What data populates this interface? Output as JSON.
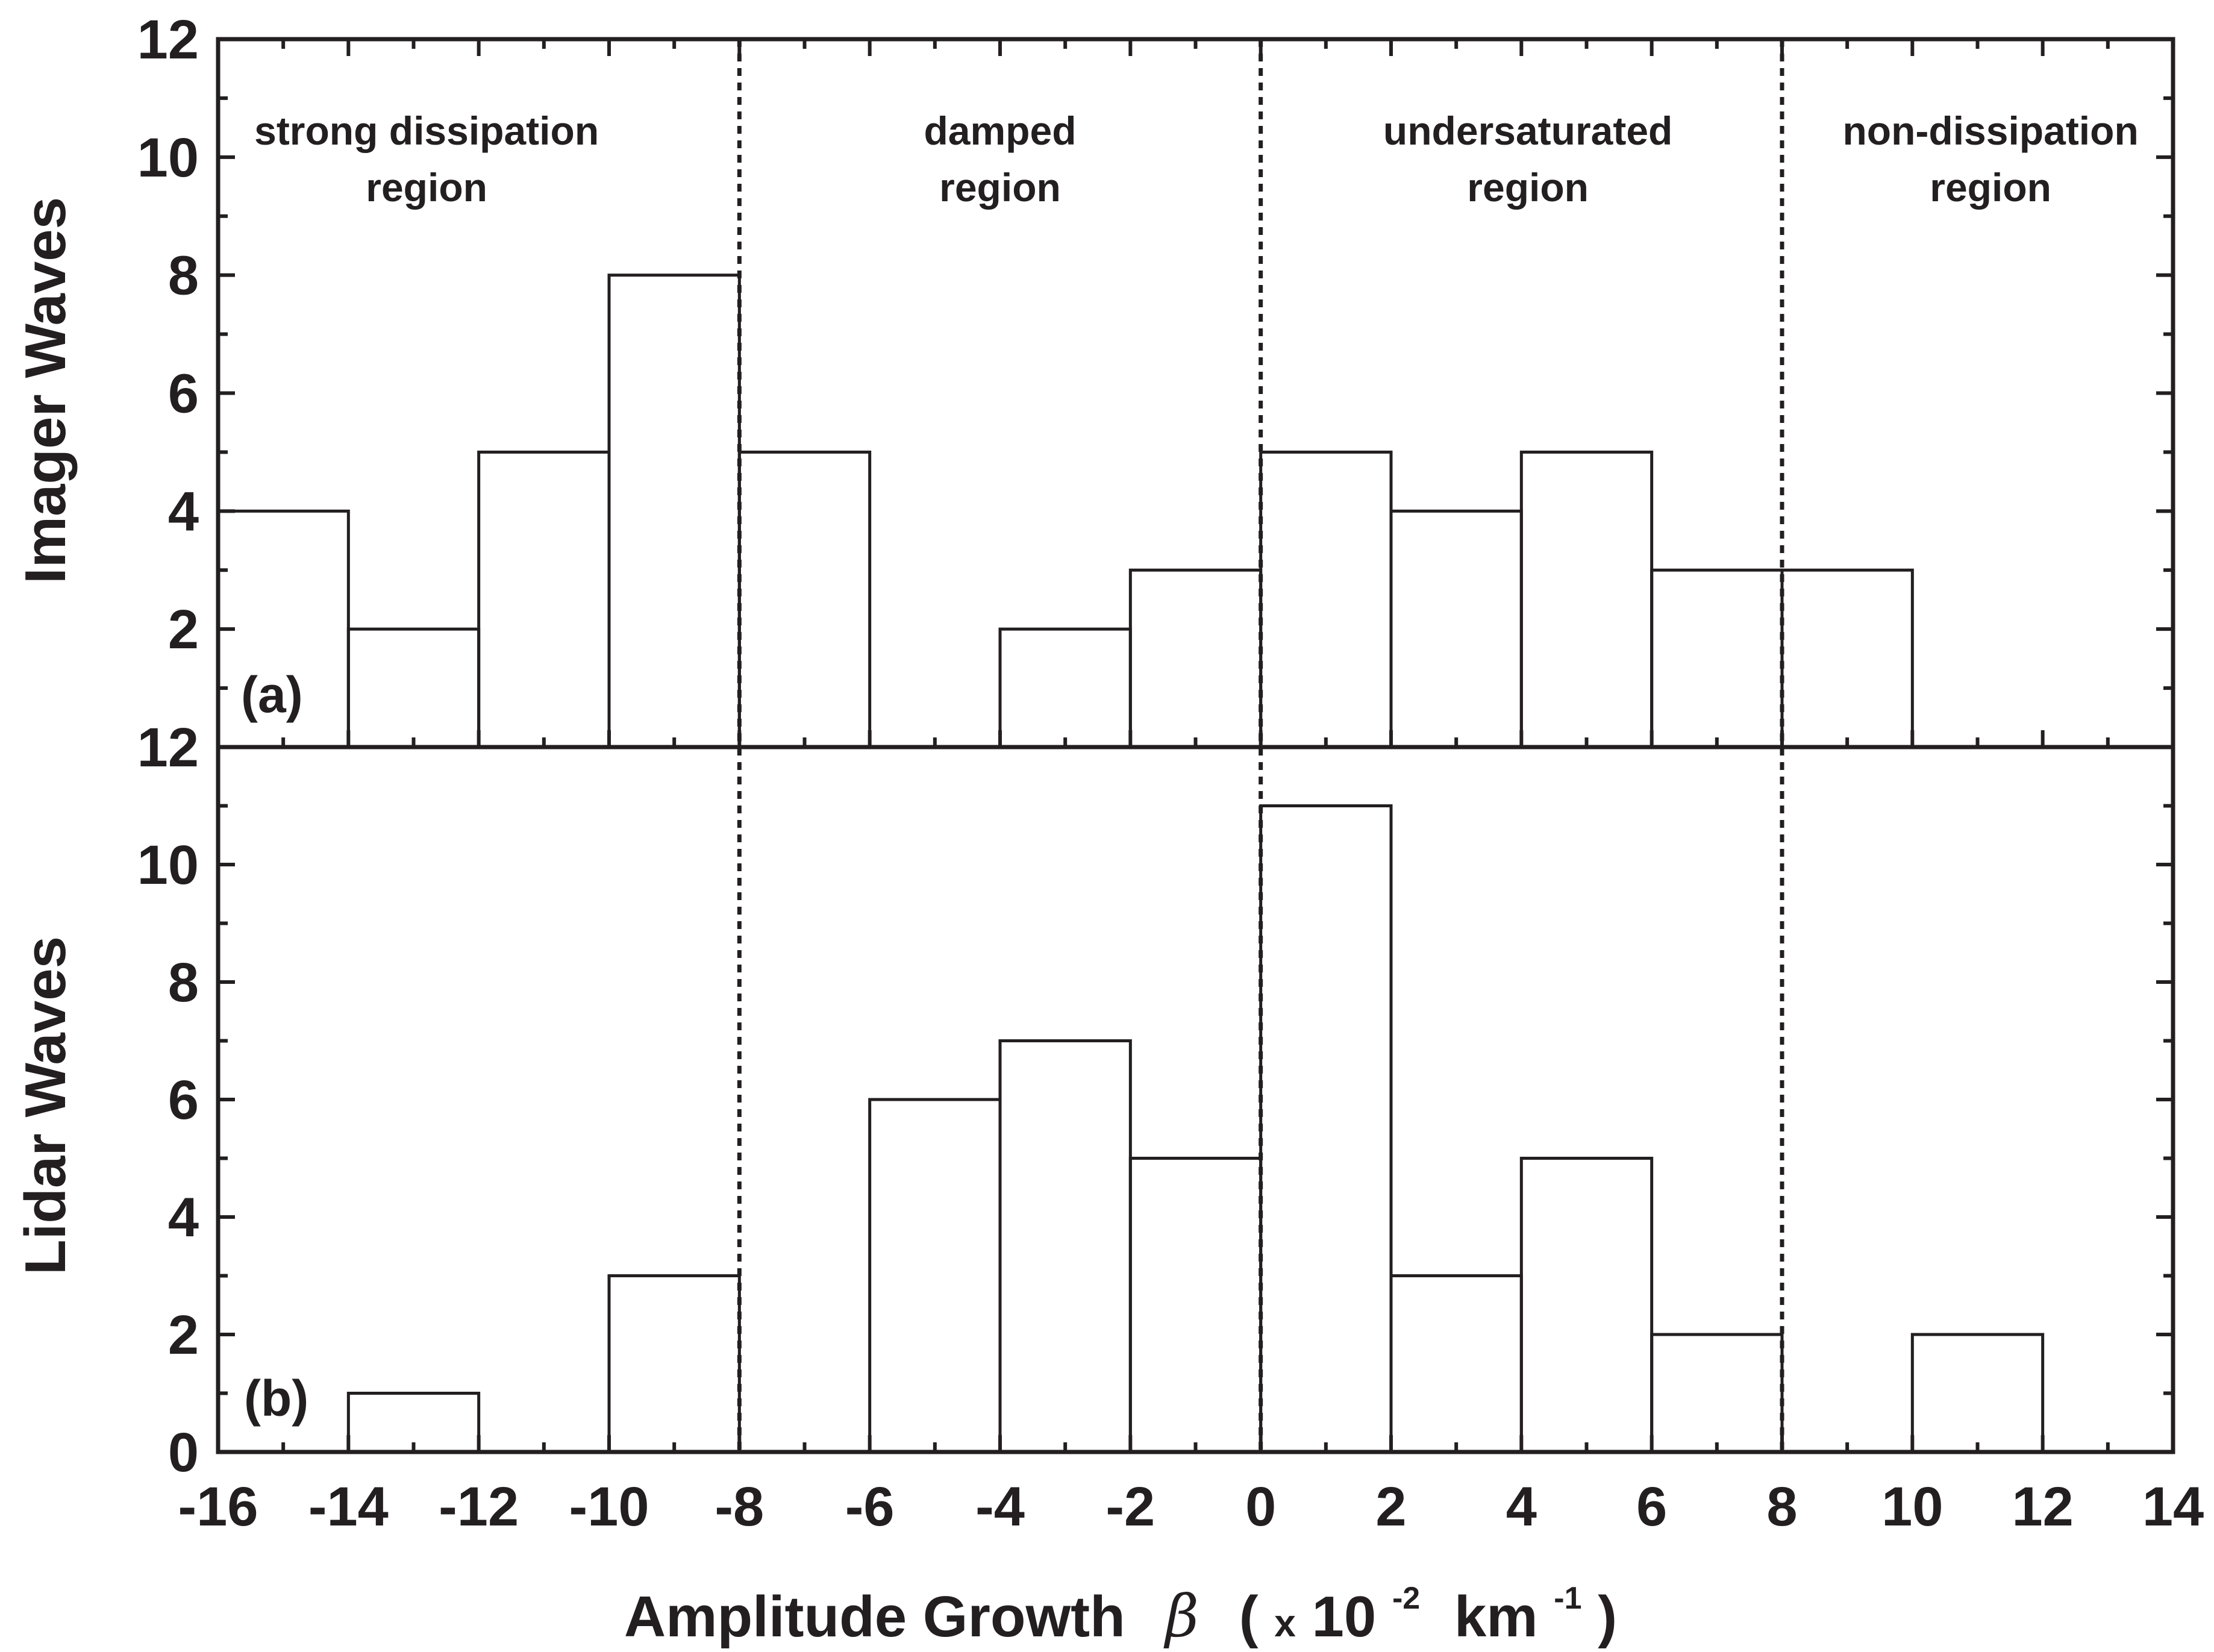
{
  "chart_data": {
    "type": "histogram",
    "bin_edges": [
      -16,
      -14,
      -12,
      -10,
      -8,
      -6,
      -4,
      -2,
      0,
      2,
      4,
      6,
      8,
      10,
      12
    ],
    "xlim": [
      -16,
      14
    ],
    "x_ticks": [
      -16,
      -14,
      -12,
      -10,
      -8,
      -6,
      -4,
      -2,
      0,
      2,
      4,
      6,
      8,
      10,
      12,
      14
    ],
    "x_tick_labels": [
      "-16",
      "-14",
      "-12",
      "-10",
      "-8",
      "-6",
      "-4",
      "-2",
      "0",
      "2",
      "4",
      "6",
      "8",
      "10",
      "12",
      "14"
    ],
    "xlabel": {
      "prefix": "Amplitude Growth",
      "symbol": "β",
      "paren_open": "(",
      "x_mark": "x",
      "base": "10",
      "exp1": "-2",
      "unit": "km",
      "exp2": "-1",
      "paren_close": ")"
    },
    "region_boundaries": [
      -8,
      0,
      8
    ],
    "regions": [
      {
        "line1": "strong dissipation",
        "line2": "region",
        "center_x": -12.8
      },
      {
        "line1": "damped",
        "line2": "region",
        "center_x": -4.0
      },
      {
        "line1": "undersaturated",
        "line2": "region",
        "center_x": 4.1
      },
      {
        "line1": "non-dissipation",
        "line2": "region",
        "center_x": 11.2
      }
    ],
    "panels": [
      {
        "id": "a",
        "label": "(a)",
        "ylabel": "Imager Waves",
        "ylim": [
          0,
          12
        ],
        "y_ticks": [
          2,
          4,
          6,
          8,
          10,
          12
        ],
        "y_tick_labels": [
          "2",
          "4",
          "6",
          "8",
          "10",
          "12"
        ],
        "counts": [
          4,
          2,
          5,
          8,
          5,
          0,
          2,
          3,
          5,
          4,
          5,
          3,
          3,
          0,
          0
        ]
      },
      {
        "id": "b",
        "label": "(b)",
        "ylabel": "Lidar Waves",
        "ylim": [
          0,
          12
        ],
        "y_ticks": [
          0,
          2,
          4,
          6,
          8,
          10,
          12
        ],
        "y_tick_labels": [
          "0",
          "2",
          "4",
          "6",
          "8",
          "10",
          "12"
        ],
        "counts": [
          0,
          1,
          0,
          3,
          0,
          6,
          7,
          5,
          11,
          3,
          5,
          2,
          0,
          2,
          0
        ]
      }
    ]
  }
}
